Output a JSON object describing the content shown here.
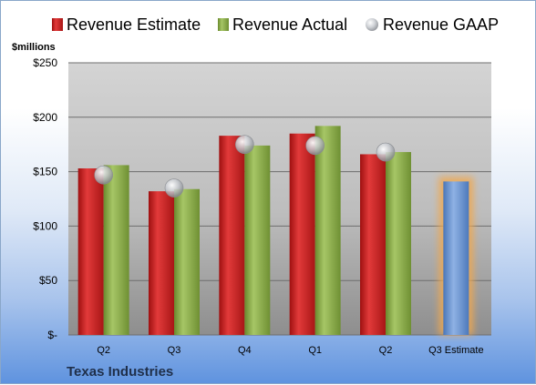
{
  "chart_data": {
    "type": "bar",
    "company": "Texas Industries",
    "unit_label": "$millions",
    "categories": [
      "Q2",
      "Q3",
      "Q4",
      "Q1",
      "Q2",
      "Q3 Estimate"
    ],
    "series": [
      {
        "name": "Revenue Estimate",
        "type": "bar",
        "color": "#d42b2b",
        "values": [
          153,
          132,
          183,
          185,
          166,
          null
        ]
      },
      {
        "name": "Revenue Actual",
        "type": "bar",
        "color": "#8fb04d",
        "values": [
          156,
          134,
          174,
          192,
          168,
          null
        ]
      },
      {
        "name": "Revenue GAAP",
        "type": "marker",
        "color": "#c4c7cc",
        "values": [
          147,
          135,
          175,
          174,
          168,
          null
        ]
      }
    ],
    "estimate_bar": {
      "category": "Q3 Estimate",
      "value": 141,
      "color": "#6d97d4",
      "glow": "#f0a850"
    },
    "yticks": [
      0,
      50,
      100,
      150,
      200,
      250
    ],
    "ytick_labels": [
      "$-",
      "$50",
      "$100",
      "$150",
      "$200",
      "$250"
    ],
    "ylim": [
      0,
      250
    ],
    "legend_position": "top",
    "grid": true
  }
}
